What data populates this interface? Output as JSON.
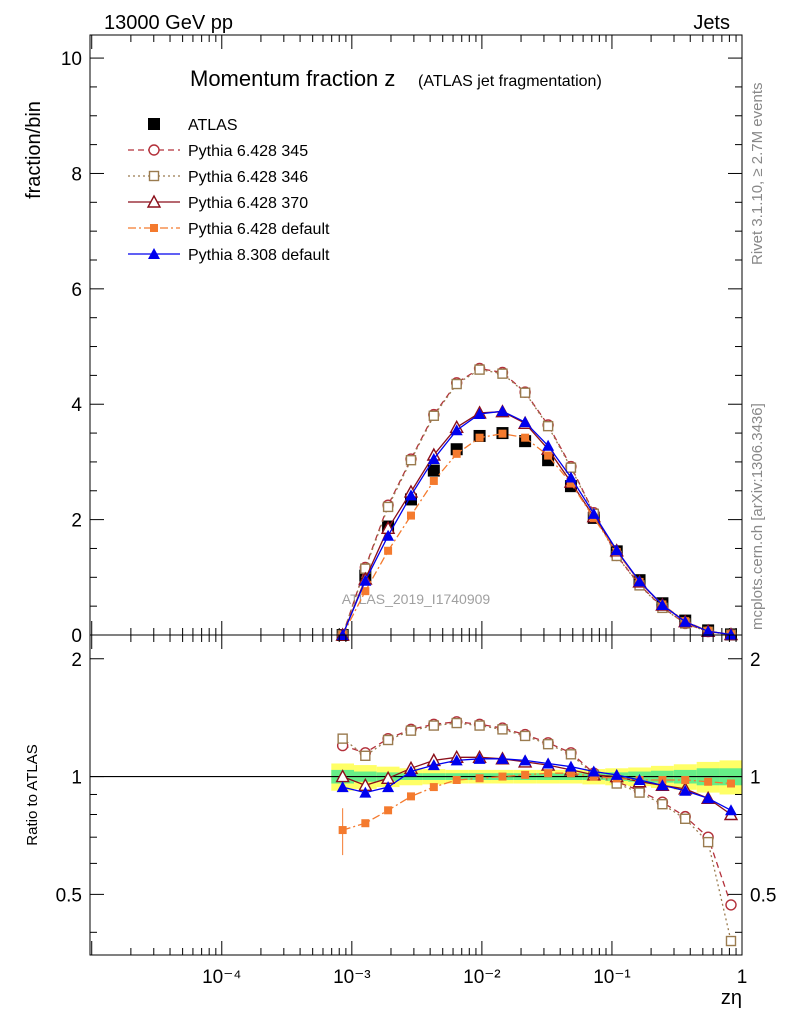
{
  "header": {
    "left": "13000 GeV pp",
    "right": "Jets"
  },
  "side_text": {
    "top": "Rivet 3.1.10, ≥ 2.7M events",
    "bottom": "mcplots.cern.ch [arXiv:1306.3436]"
  },
  "watermark": "ATLAS_2019_I1740909",
  "chart_data": [
    {
      "type": "scatter",
      "title": "Momentum fraction z",
      "subtitle": "(ATLAS jet fragmentation)",
      "ylabel": "fraction/bin",
      "xlabel": "zη",
      "xscale": "log",
      "xlim": [
        9.7e-06,
        1
      ],
      "ylim": [
        0,
        10.4
      ],
      "yticks": [
        0,
        2,
        4,
        6,
        8,
        10
      ],
      "ytick_labels": [
        "0",
        "2",
        "4",
        "6",
        "8",
        "10"
      ],
      "x": [
        0.00085,
        0.00127,
        0.0019,
        0.00285,
        0.00427,
        0.0064,
        0.0096,
        0.0144,
        0.0215,
        0.0323,
        0.0484,
        0.0725,
        0.1088,
        0.163,
        0.2444,
        0.366,
        0.549,
        0.823
      ],
      "series": [
        {
          "name": "ATLAS",
          "color": "#000000",
          "marker": "square-filled",
          "line": "none",
          "values": [
            0.0,
            1.03,
            1.88,
            2.35,
            2.85,
            3.22,
            3.45,
            3.5,
            3.36,
            3.03,
            2.58,
            2.03,
            1.45,
            0.95,
            0.55,
            0.25,
            0.08,
            0.01
          ]
        },
        {
          "name": "Pythia 6.428 345",
          "color": "#b3303a",
          "marker": "circle-open",
          "line": "dashed",
          "values": [
            0.0,
            1.17,
            2.25,
            3.05,
            3.82,
            4.37,
            4.62,
            4.55,
            4.21,
            3.64,
            2.92,
            2.12,
            1.38,
            0.87,
            0.48,
            0.2,
            0.06,
            0.005
          ]
        },
        {
          "name": "Pythia 6.428 346",
          "color": "#9a7b4f",
          "marker": "square-open",
          "line": "dotted",
          "values": [
            0.0,
            1.15,
            2.22,
            3.03,
            3.8,
            4.35,
            4.6,
            4.53,
            4.2,
            3.62,
            2.9,
            2.1,
            1.37,
            0.86,
            0.47,
            0.2,
            0.055,
            0.004
          ]
        },
        {
          "name": "Pythia 6.428 370",
          "color": "#8b0f1a",
          "marker": "triangle-open",
          "line": "solid",
          "values": [
            0.0,
            0.97,
            1.85,
            2.48,
            3.12,
            3.6,
            3.85,
            3.87,
            3.67,
            3.22,
            2.65,
            2.05,
            1.46,
            0.92,
            0.52,
            0.23,
            0.065,
            0.008
          ]
        },
        {
          "name": "Pythia 6.428 default",
          "color": "#f47a2e",
          "marker": "square-filled-small",
          "line": "dashdot",
          "values": [
            0.0,
            0.76,
            1.46,
            2.07,
            2.67,
            3.14,
            3.42,
            3.49,
            3.42,
            3.11,
            2.63,
            2.03,
            1.44,
            0.92,
            0.53,
            0.24,
            0.07,
            0.01
          ]
        },
        {
          "name": "Pythia 8.308 default",
          "color": "#0000ee",
          "marker": "triangle-filled",
          "line": "solid",
          "values": [
            0.0,
            0.94,
            1.72,
            2.42,
            3.05,
            3.55,
            3.83,
            3.88,
            3.69,
            3.28,
            2.73,
            2.1,
            1.47,
            0.93,
            0.52,
            0.23,
            0.065,
            0.008
          ]
        }
      ]
    },
    {
      "type": "scatter",
      "ylabel": "Ratio to ATLAS",
      "xlabel": "zη",
      "xscale": "log",
      "xlim": [
        9.7e-06,
        1
      ],
      "ylim": [
        0.35,
        2.3
      ],
      "yticks": [
        0.5,
        1,
        2
      ],
      "ytick_labels": [
        "0.5",
        "1",
        "2"
      ],
      "xticks": [
        0.0001,
        0.001,
        0.01,
        0.1,
        1
      ],
      "xtick_labels": [
        "10⁻⁴",
        "10⁻³",
        "10⁻²",
        "10⁻¹",
        "1"
      ],
      "reference_line": 1,
      "band_inner_halfwidth": [
        0.04,
        0.03,
        0.025,
        0.02,
        0.02,
        0.02,
        0.02,
        0.02,
        0.02,
        0.02,
        0.02,
        0.02,
        0.025,
        0.03,
        0.035,
        0.04,
        0.05,
        0.05
      ],
      "band_outer_halfwidth": [
        0.08,
        0.07,
        0.06,
        0.05,
        0.045,
        0.04,
        0.04,
        0.04,
        0.04,
        0.04,
        0.04,
        0.045,
        0.05,
        0.055,
        0.065,
        0.075,
        0.09,
        0.1
      ],
      "band_colors": {
        "inner": "#66ee88",
        "outer": "#ffff66"
      },
      "x": [
        0.00085,
        0.00127,
        0.0019,
        0.00285,
        0.00427,
        0.0064,
        0.0096,
        0.0144,
        0.0215,
        0.0323,
        0.0484,
        0.0725,
        0.1088,
        0.163,
        0.2444,
        0.366,
        0.549,
        0.823
      ],
      "series": [
        {
          "name": "Pythia 6.428 345",
          "values": [
            1.2,
            1.15,
            1.25,
            1.32,
            1.36,
            1.38,
            1.36,
            1.33,
            1.28,
            1.22,
            1.15,
            1.02,
            0.97,
            0.92,
            0.86,
            0.79,
            0.7,
            0.47
          ]
        },
        {
          "name": "Pythia 6.428 346",
          "values": [
            1.25,
            1.13,
            1.24,
            1.31,
            1.35,
            1.37,
            1.35,
            1.32,
            1.27,
            1.21,
            1.14,
            1.01,
            0.96,
            0.91,
            0.85,
            0.78,
            0.68,
            0.38
          ]
        },
        {
          "name": "Pythia 6.428 370",
          "values": [
            1.0,
            0.95,
            0.99,
            1.05,
            1.1,
            1.12,
            1.12,
            1.11,
            1.09,
            1.07,
            1.04,
            1.01,
            1.0,
            0.97,
            0.95,
            0.93,
            0.88,
            0.8
          ]
        },
        {
          "name": "Pythia 6.428 default",
          "values": [
            0.73,
            0.76,
            0.82,
            0.89,
            0.94,
            0.98,
            0.99,
            1.0,
            1.01,
            1.02,
            1.02,
            1.0,
            0.99,
            0.98,
            0.98,
            0.98,
            0.97,
            0.96
          ]
        },
        {
          "name": "Pythia 8.308 default",
          "values": [
            0.94,
            0.91,
            0.94,
            1.03,
            1.07,
            1.1,
            1.11,
            1.11,
            1.1,
            1.08,
            1.06,
            1.03,
            1.01,
            0.98,
            0.95,
            0.92,
            0.88,
            0.82
          ]
        }
      ],
      "error_bars": {
        "series": "Pythia 6.428 default",
        "point_index": 0,
        "low": 0.63,
        "high": 0.83
      }
    }
  ]
}
